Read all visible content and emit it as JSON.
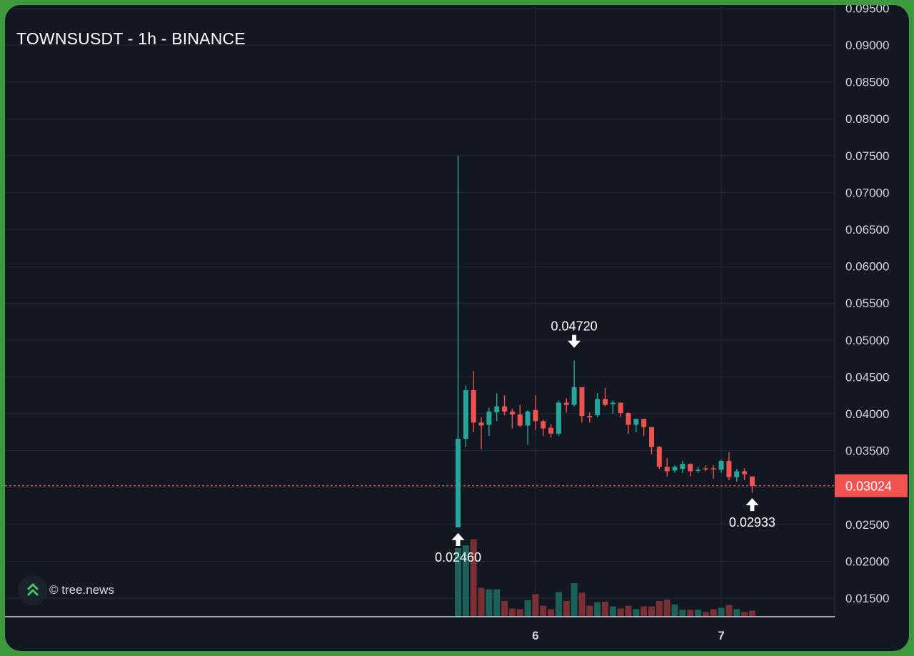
{
  "header": {
    "title": "TOWNSUSDT - 1h - BINANCE"
  },
  "watermark": {
    "text": "© tree.news",
    "icon": "tree-news-logo-icon"
  },
  "colors": {
    "background": "#131722",
    "frame": "#3f9a3c",
    "up": "#26a69a",
    "down": "#ef5350",
    "up_volume": "#1c6159",
    "down_volume": "#7a2f35",
    "grid": "#232837",
    "axis_text": "#d1d4dc",
    "price_label_bg": "#f05350"
  },
  "chart_data": {
    "type": "candlestick",
    "symbol": "TOWNSUSDT",
    "interval": "1h",
    "exchange": "BINANCE",
    "y_ticks": [
      "0.09500",
      "0.09000",
      "0.08500",
      "0.08000",
      "0.07500",
      "0.07000",
      "0.06500",
      "0.06000",
      "0.05500",
      "0.05000",
      "0.04500",
      "0.04000",
      "0.03500",
      "0.03000",
      "0.02500",
      "0.02000",
      "0.01500"
    ],
    "ylim": [
      0.0125,
      0.0955
    ],
    "x_ticks": [
      {
        "label": "6",
        "index": 10
      },
      {
        "label": "7",
        "index": 34
      }
    ],
    "grid": true,
    "last_price": "0.03024",
    "annotations": [
      {
        "label": "0.04720",
        "price": 0.0472,
        "index": 15,
        "direction": "down"
      },
      {
        "label": "0.02460",
        "price": 0.0246,
        "index": 0,
        "direction": "up"
      },
      {
        "label": "0.02933",
        "price": 0.02933,
        "index": 38,
        "direction": "up"
      }
    ],
    "candles": [
      {
        "o": 0.0246,
        "h": 0.075,
        "l": 0.0246,
        "c": 0.0366,
        "v": 100
      },
      {
        "o": 0.0366,
        "h": 0.0438,
        "l": 0.0355,
        "c": 0.0432,
        "v": 104
      },
      {
        "o": 0.0432,
        "h": 0.0458,
        "l": 0.0375,
        "c": 0.0388,
        "v": 113
      },
      {
        "o": 0.0388,
        "h": 0.0395,
        "l": 0.0352,
        "c": 0.0384,
        "v": 42
      },
      {
        "o": 0.0385,
        "h": 0.0408,
        "l": 0.037,
        "c": 0.0403,
        "v": 40
      },
      {
        "o": 0.0402,
        "h": 0.0428,
        "l": 0.039,
        "c": 0.041,
        "v": 40
      },
      {
        "o": 0.041,
        "h": 0.0425,
        "l": 0.0398,
        "c": 0.0403,
        "v": 23
      },
      {
        "o": 0.0403,
        "h": 0.0407,
        "l": 0.038,
        "c": 0.0399,
        "v": 12
      },
      {
        "o": 0.0399,
        "h": 0.0412,
        "l": 0.0382,
        "c": 0.0384,
        "v": 11
      },
      {
        "o": 0.0384,
        "h": 0.0405,
        "l": 0.0358,
        "c": 0.0403,
        "v": 24
      },
      {
        "o": 0.0405,
        "h": 0.0425,
        "l": 0.0378,
        "c": 0.039,
        "v": 33
      },
      {
        "o": 0.039,
        "h": 0.0392,
        "l": 0.037,
        "c": 0.038,
        "v": 16
      },
      {
        "o": 0.0381,
        "h": 0.0386,
        "l": 0.0368,
        "c": 0.0373,
        "v": 11
      },
      {
        "o": 0.0373,
        "h": 0.0418,
        "l": 0.037,
        "c": 0.0415,
        "v": 36
      },
      {
        "o": 0.0415,
        "h": 0.0421,
        "l": 0.0402,
        "c": 0.0412,
        "v": 23
      },
      {
        "o": 0.0412,
        "h": 0.0472,
        "l": 0.041,
        "c": 0.0436,
        "v": 49
      },
      {
        "o": 0.0436,
        "h": 0.0436,
        "l": 0.0388,
        "c": 0.0397,
        "v": 35
      },
      {
        "o": 0.0397,
        "h": 0.0402,
        "l": 0.0388,
        "c": 0.0395,
        "v": 16
      },
      {
        "o": 0.0398,
        "h": 0.0428,
        "l": 0.0395,
        "c": 0.042,
        "v": 21
      },
      {
        "o": 0.042,
        "h": 0.0435,
        "l": 0.041,
        "c": 0.0412,
        "v": 22
      },
      {
        "o": 0.0413,
        "h": 0.0418,
        "l": 0.04,
        "c": 0.0415,
        "v": 15
      },
      {
        "o": 0.0415,
        "h": 0.0415,
        "l": 0.0395,
        "c": 0.0401,
        "v": 12
      },
      {
        "o": 0.0401,
        "h": 0.0402,
        "l": 0.0373,
        "c": 0.0385,
        "v": 16
      },
      {
        "o": 0.0385,
        "h": 0.039,
        "l": 0.0375,
        "c": 0.0393,
        "v": 11
      },
      {
        "o": 0.0393,
        "h": 0.0393,
        "l": 0.037,
        "c": 0.0382,
        "v": 15
      },
      {
        "o": 0.0382,
        "h": 0.0382,
        "l": 0.0345,
        "c": 0.0355,
        "v": 15
      },
      {
        "o": 0.0355,
        "h": 0.0356,
        "l": 0.0325,
        "c": 0.0328,
        "v": 23
      },
      {
        "o": 0.0328,
        "h": 0.034,
        "l": 0.0315,
        "c": 0.0322,
        "v": 25
      },
      {
        "o": 0.0323,
        "h": 0.033,
        "l": 0.032,
        "c": 0.0328,
        "v": 18
      },
      {
        "o": 0.0325,
        "h": 0.0336,
        "l": 0.032,
        "c": 0.0332,
        "v": 10
      },
      {
        "o": 0.0332,
        "h": 0.0333,
        "l": 0.0315,
        "c": 0.0322,
        "v": 10
      },
      {
        "o": 0.0323,
        "h": 0.0328,
        "l": 0.032,
        "c": 0.0324,
        "v": 10
      },
      {
        "o": 0.0326,
        "h": 0.033,
        "l": 0.0322,
        "c": 0.0325,
        "v": 7
      },
      {
        "o": 0.0326,
        "h": 0.033,
        "l": 0.0312,
        "c": 0.0325,
        "v": 11
      },
      {
        "o": 0.0324,
        "h": 0.0338,
        "l": 0.032,
        "c": 0.0336,
        "v": 13
      },
      {
        "o": 0.0336,
        "h": 0.0348,
        "l": 0.031,
        "c": 0.0314,
        "v": 17
      },
      {
        "o": 0.0314,
        "h": 0.0325,
        "l": 0.0308,
        "c": 0.0322,
        "v": 11
      },
      {
        "o": 0.0322,
        "h": 0.0326,
        "l": 0.031,
        "c": 0.0318,
        "v": 7
      },
      {
        "o": 0.0315,
        "h": 0.0315,
        "l": 0.0293,
        "c": 0.0302,
        "v": 9
      }
    ]
  }
}
